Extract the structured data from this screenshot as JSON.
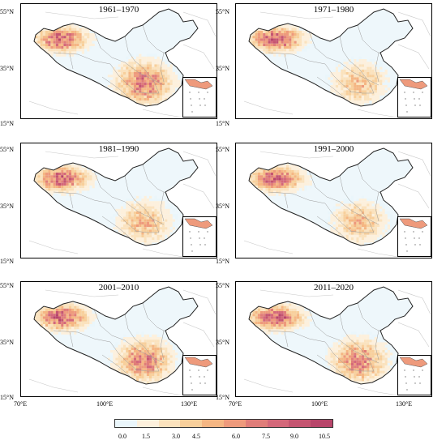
{
  "panels": [
    {
      "title": "1961–1970",
      "intensity": 1.0
    },
    {
      "title": "1971–1980",
      "intensity": 0.6
    },
    {
      "title": "1981–1990",
      "intensity": 0.65
    },
    {
      "title": "1991–2000",
      "intensity": 0.62
    },
    {
      "title": "2001–2010",
      "intensity": 0.95
    },
    {
      "title": "2011–2020",
      "intensity": 0.9
    }
  ],
  "lat_labels": [
    "55°N",
    "35°N",
    "15°N"
  ],
  "lon_labels": [
    "70°E",
    "100°E",
    "130°E"
  ],
  "legend": {
    "ticks": [
      "0.0",
      "1.5",
      "3.0",
      "4.5",
      "6.0",
      "7.5",
      "9.0",
      "10.5"
    ],
    "colors": [
      "#eaf6fb",
      "#fdf0dc",
      "#fbe2bd",
      "#f8cf9b",
      "#f5b683",
      "#ee9a7c",
      "#e07d79",
      "#d4687a",
      "#c55571",
      "#b8456a"
    ]
  }
}
